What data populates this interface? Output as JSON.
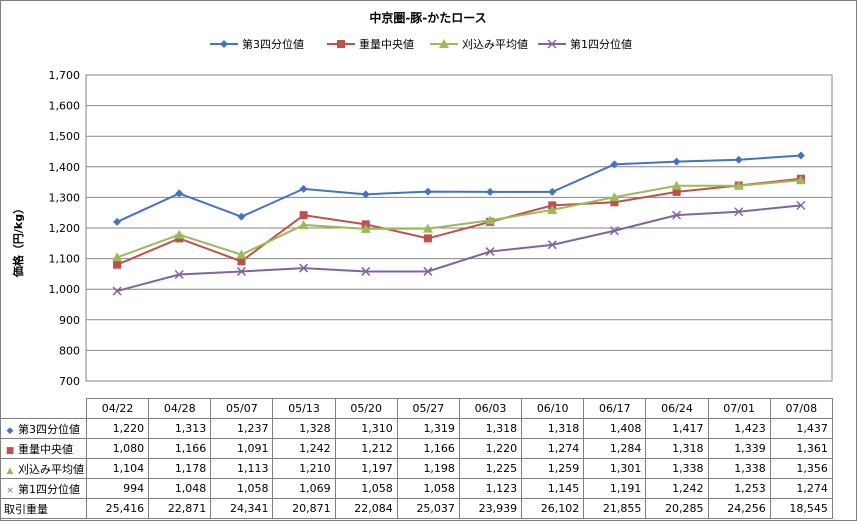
{
  "chart_data": {
    "type": "line",
    "title": "中京圏-豚-かたロース",
    "ylabel": "価格（円/kg）",
    "xlabel": "",
    "ylim": [
      700,
      1700
    ],
    "yticks": [
      700,
      800,
      900,
      1000,
      1100,
      1200,
      1300,
      1400,
      1500,
      1600,
      1700
    ],
    "ytick_labels": [
      "700",
      "800",
      "900",
      "1,000",
      "1,100",
      "1,200",
      "1,300",
      "1,400",
      "1,500",
      "1,600",
      "1,700"
    ],
    "grid": true,
    "legend_position": "top",
    "categories": [
      "04/22",
      "04/28",
      "05/07",
      "05/13",
      "05/20",
      "05/27",
      "06/03",
      "06/10",
      "06/17",
      "06/24",
      "07/01",
      "07/08"
    ],
    "series": [
      {
        "name": "第3四分位値",
        "color": "#4472c4",
        "marker": "diamond",
        "values": [
          1220,
          1313,
          1237,
          1328,
          1310,
          1319,
          1318,
          1318,
          1408,
          1417,
          1423,
          1437
        ],
        "labels": [
          "1,220",
          "1,313",
          "1,237",
          "1,328",
          "1,310",
          "1,319",
          "1,318",
          "1,318",
          "1,408",
          "1,417",
          "1,423",
          "1,437"
        ]
      },
      {
        "name": "重量中央値",
        "color": "#c0504d",
        "marker": "square",
        "values": [
          1080,
          1166,
          1091,
          1242,
          1212,
          1166,
          1220,
          1274,
          1284,
          1318,
          1339,
          1361
        ],
        "labels": [
          "1,080",
          "1,166",
          "1,091",
          "1,242",
          "1,212",
          "1,166",
          "1,220",
          "1,274",
          "1,284",
          "1,318",
          "1,339",
          "1,361"
        ]
      },
      {
        "name": "刈込み平均値",
        "color": "#9bbb59",
        "marker": "triangle",
        "values": [
          1104,
          1178,
          1113,
          1210,
          1197,
          1198,
          1225,
          1259,
          1301,
          1338,
          1338,
          1356
        ],
        "labels": [
          "1,104",
          "1,178",
          "1,113",
          "1,210",
          "1,197",
          "1,198",
          "1,225",
          "1,259",
          "1,301",
          "1,338",
          "1,338",
          "1,356"
        ]
      },
      {
        "name": "第1四分位値",
        "color": "#8064a2",
        "marker": "x",
        "values": [
          994,
          1048,
          1058,
          1069,
          1058,
          1058,
          1123,
          1145,
          1191,
          1242,
          1253,
          1274
        ],
        "labels": [
          "994",
          "1,048",
          "1,058",
          "1,069",
          "1,058",
          "1,058",
          "1,123",
          "1,145",
          "1,191",
          "1,242",
          "1,253",
          "1,274"
        ]
      }
    ],
    "extra_rows": [
      {
        "name": "取引重量",
        "values": [
          25416,
          22871,
          24341,
          20871,
          22084,
          25037,
          23939,
          26102,
          21855,
          20285,
          24256,
          18545
        ],
        "labels": [
          "25,416",
          "22,871",
          "24,341",
          "20,871",
          "22,084",
          "25,037",
          "23,939",
          "26,102",
          "21,855",
          "20,285",
          "24,256",
          "18,545"
        ]
      }
    ]
  }
}
